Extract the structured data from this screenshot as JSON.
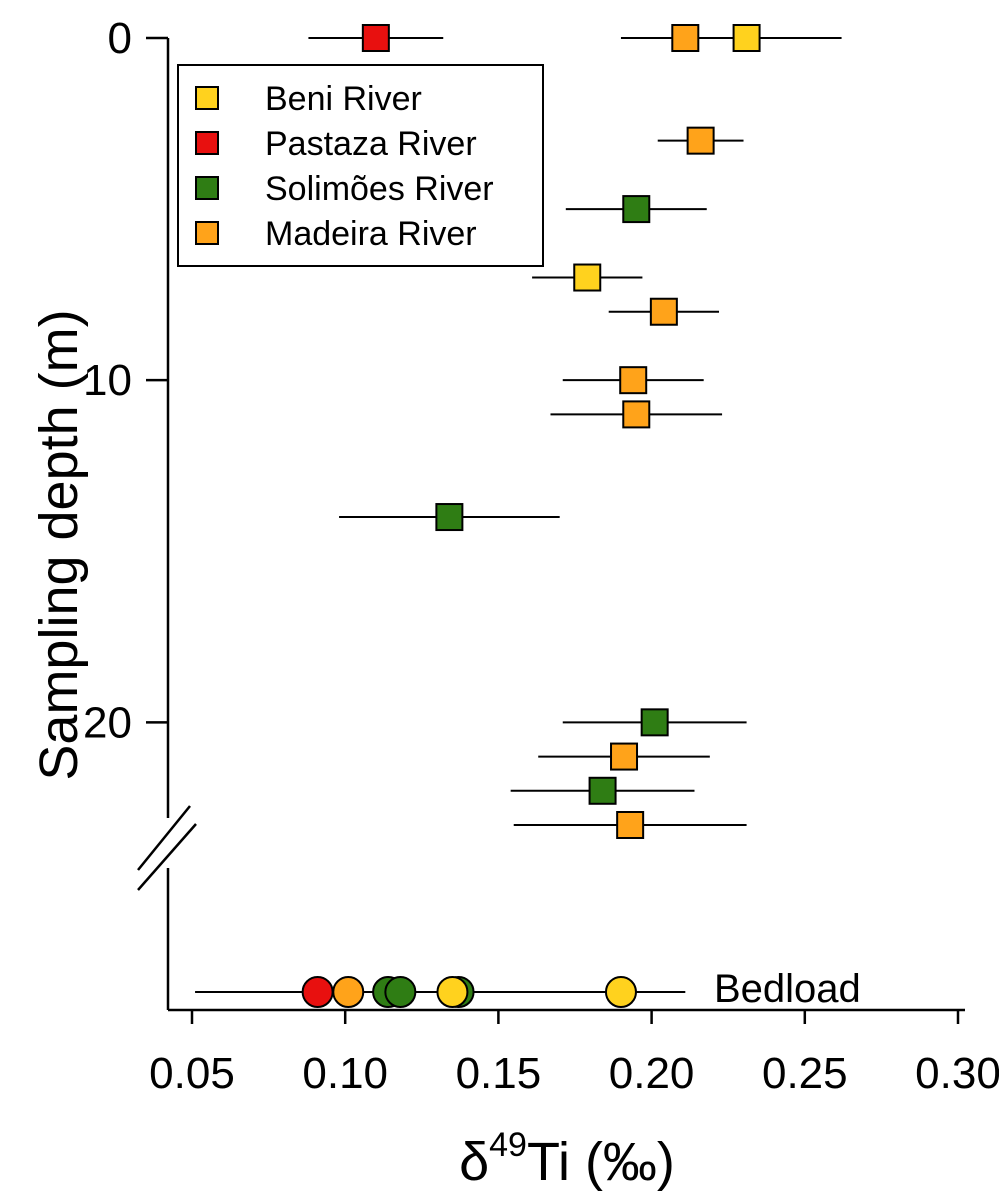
{
  "chart_data": {
    "type": "scatter",
    "xlabel": {
      "prefix": "δ",
      "superscript": "49",
      "suffix": "Ti (‰)"
    },
    "ylabel": "Sampling depth (m)",
    "xlim": [
      0.05,
      0.3
    ],
    "ylim": [
      0,
      23
    ],
    "x_ticks": [
      0.05,
      0.1,
      0.15,
      0.2,
      0.25,
      0.3
    ],
    "x_tick_labels": [
      "0.05",
      "0.10",
      "0.15",
      "0.20",
      "0.25",
      "0.30"
    ],
    "y_ticks": [
      0,
      10,
      20
    ],
    "y_tick_labels": [
      "0",
      "10",
      "20"
    ],
    "y_axis_break": true,
    "legend": {
      "placement": "top-left",
      "entries": [
        {
          "label": "Beni River",
          "color": "#FFD21E"
        },
        {
          "label": "Pastaza River",
          "color": "#E8100F"
        },
        {
          "label": "Solimões River",
          "color": "#2F7D14"
        },
        {
          "label": "Madeira River",
          "color": "#FFA31A"
        }
      ]
    },
    "colors": {
      "Beni River": "#FFD21E",
      "Pastaza River": "#E8100F",
      "Solimões River": "#2F7D14",
      "Madeira River": "#FFA31A"
    },
    "series": [
      {
        "river": "Beni River",
        "marker": "square",
        "points": [
          {
            "x": 0.231,
            "y": 0,
            "err": 0.031
          },
          {
            "x": 0.179,
            "y": 7,
            "err": 0.018
          }
        ]
      },
      {
        "river": "Pastaza River",
        "marker": "square",
        "points": [
          {
            "x": 0.11,
            "y": 0,
            "err": 0.022
          }
        ]
      },
      {
        "river": "Solimões River",
        "marker": "square",
        "points": [
          {
            "x": 0.195,
            "y": 5,
            "err": 0.023
          },
          {
            "x": 0.134,
            "y": 14,
            "err": 0.036
          },
          {
            "x": 0.201,
            "y": 20,
            "err": 0.03
          },
          {
            "x": 0.184,
            "y": 22,
            "err": 0.03
          }
        ]
      },
      {
        "river": "Madeira River",
        "marker": "square",
        "points": [
          {
            "x": 0.211,
            "y": 0,
            "err": 0.021
          },
          {
            "x": 0.216,
            "y": 3,
            "err": 0.014
          },
          {
            "x": 0.204,
            "y": 8,
            "err": 0.018
          },
          {
            "x": 0.194,
            "y": 10,
            "err": 0.023
          },
          {
            "x": 0.195,
            "y": 11,
            "err": 0.028
          },
          {
            "x": 0.191,
            "y": 21,
            "err": 0.028
          },
          {
            "x": 0.193,
            "y": 23,
            "err": 0.038
          }
        ]
      }
    ],
    "bedload": {
      "label": "Bedload",
      "marker": "circle",
      "error_range": [
        0.051,
        0.211
      ],
      "points": [
        {
          "river": "Pastaza River",
          "x": 0.091
        },
        {
          "river": "Madeira River",
          "x": 0.101
        },
        {
          "river": "Solimões River",
          "x": 0.114
        },
        {
          "river": "Solimões River",
          "x": 0.118
        },
        {
          "river": "Solimões River",
          "x": 0.137
        },
        {
          "river": "Beni River",
          "x": 0.135
        },
        {
          "river": "Beni River",
          "x": 0.19
        }
      ]
    }
  }
}
